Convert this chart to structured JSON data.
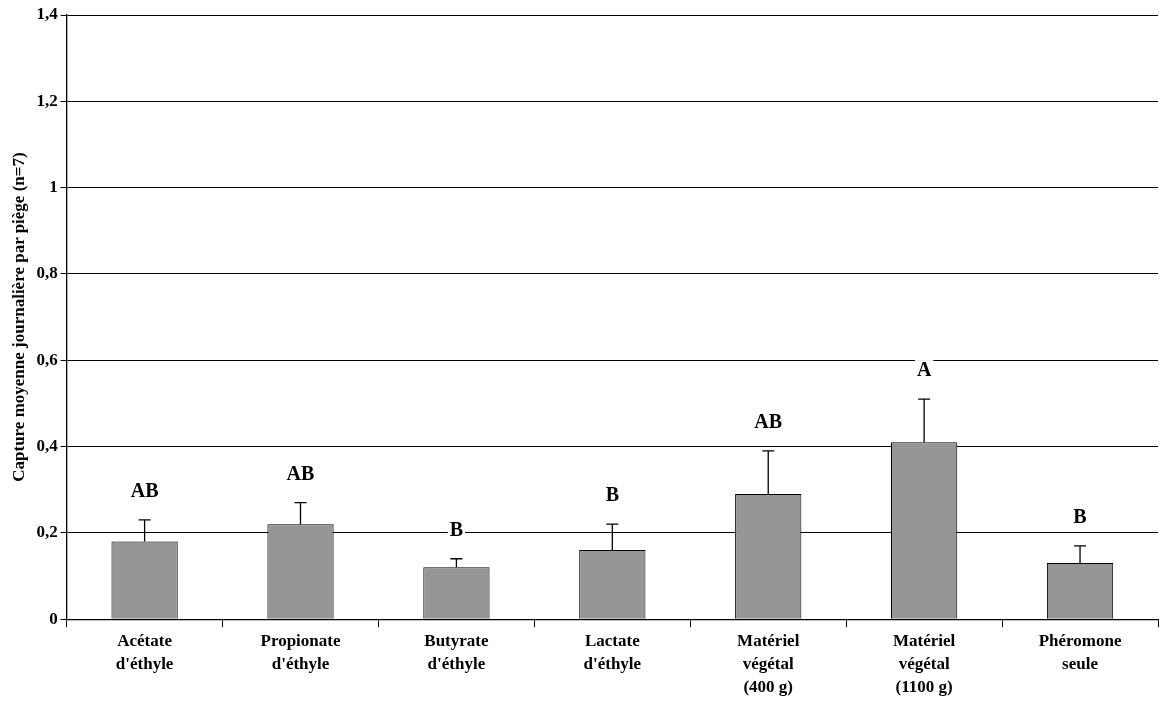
{
  "chart_data": {
    "type": "bar",
    "ylabel": "Capture moyenne journalière par piège (n=7)",
    "categories": [
      "Acétate\nd'éthyle",
      "Propionate\nd'éthyle",
      "Butyrate\nd'éthyle",
      "Lactate\nd'éthyle",
      "Matériel\nvégétal\n(400 g)",
      "Matériel\nvégétal\n(1100 g)",
      "Phéromone\nseule"
    ],
    "values": [
      0.18,
      0.22,
      0.12,
      0.16,
      0.29,
      0.41,
      0.13
    ],
    "color": "#969696",
    "errors": [
      [
        0.18,
        0.23
      ],
      [
        0.22,
        0.27
      ],
      [
        0.12,
        0.14
      ],
      [
        0.16,
        0.22
      ],
      [
        0.29,
        0.39
      ],
      [
        0.41,
        0.51
      ],
      [
        0.13,
        0.17
      ]
    ],
    "ylim": [
      0,
      1.4
    ],
    "yticks": [
      0,
      {
        "value": 0.2,
        "label": "0,2"
      },
      {
        "value": 0.4,
        "label": "0,4"
      },
      {
        "value": 0.6,
        "label": "0,6"
      },
      {
        "value": 0.8,
        "label": "0,8"
      },
      1,
      {
        "value": 1.2,
        "label": "1,2"
      },
      {
        "value": 1.4,
        "label": "1,4"
      }
    ],
    "grid": "y",
    "legend": false,
    "value_labels": [
      "AB",
      "AB",
      "B",
      "B",
      "AB",
      "A",
      "B"
    ]
  }
}
